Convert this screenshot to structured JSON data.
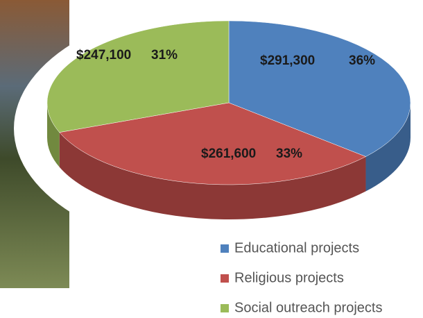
{
  "chart_data": {
    "type": "pie",
    "categories": [
      "Educational projects",
      "Religious projects",
      "Social outreach projects"
    ],
    "values": [
      291300,
      261600,
      247100
    ],
    "value_labels": [
      "$291,300",
      "$261,600",
      "$247,100"
    ],
    "percent_labels": [
      "36%",
      "33%",
      "31%"
    ],
    "colors": [
      "#4f81bd",
      "#c0504d",
      "#9bbb59"
    ],
    "side_colors": [
      "#385d8a",
      "#8c3836",
      "#71893f"
    ]
  }
}
